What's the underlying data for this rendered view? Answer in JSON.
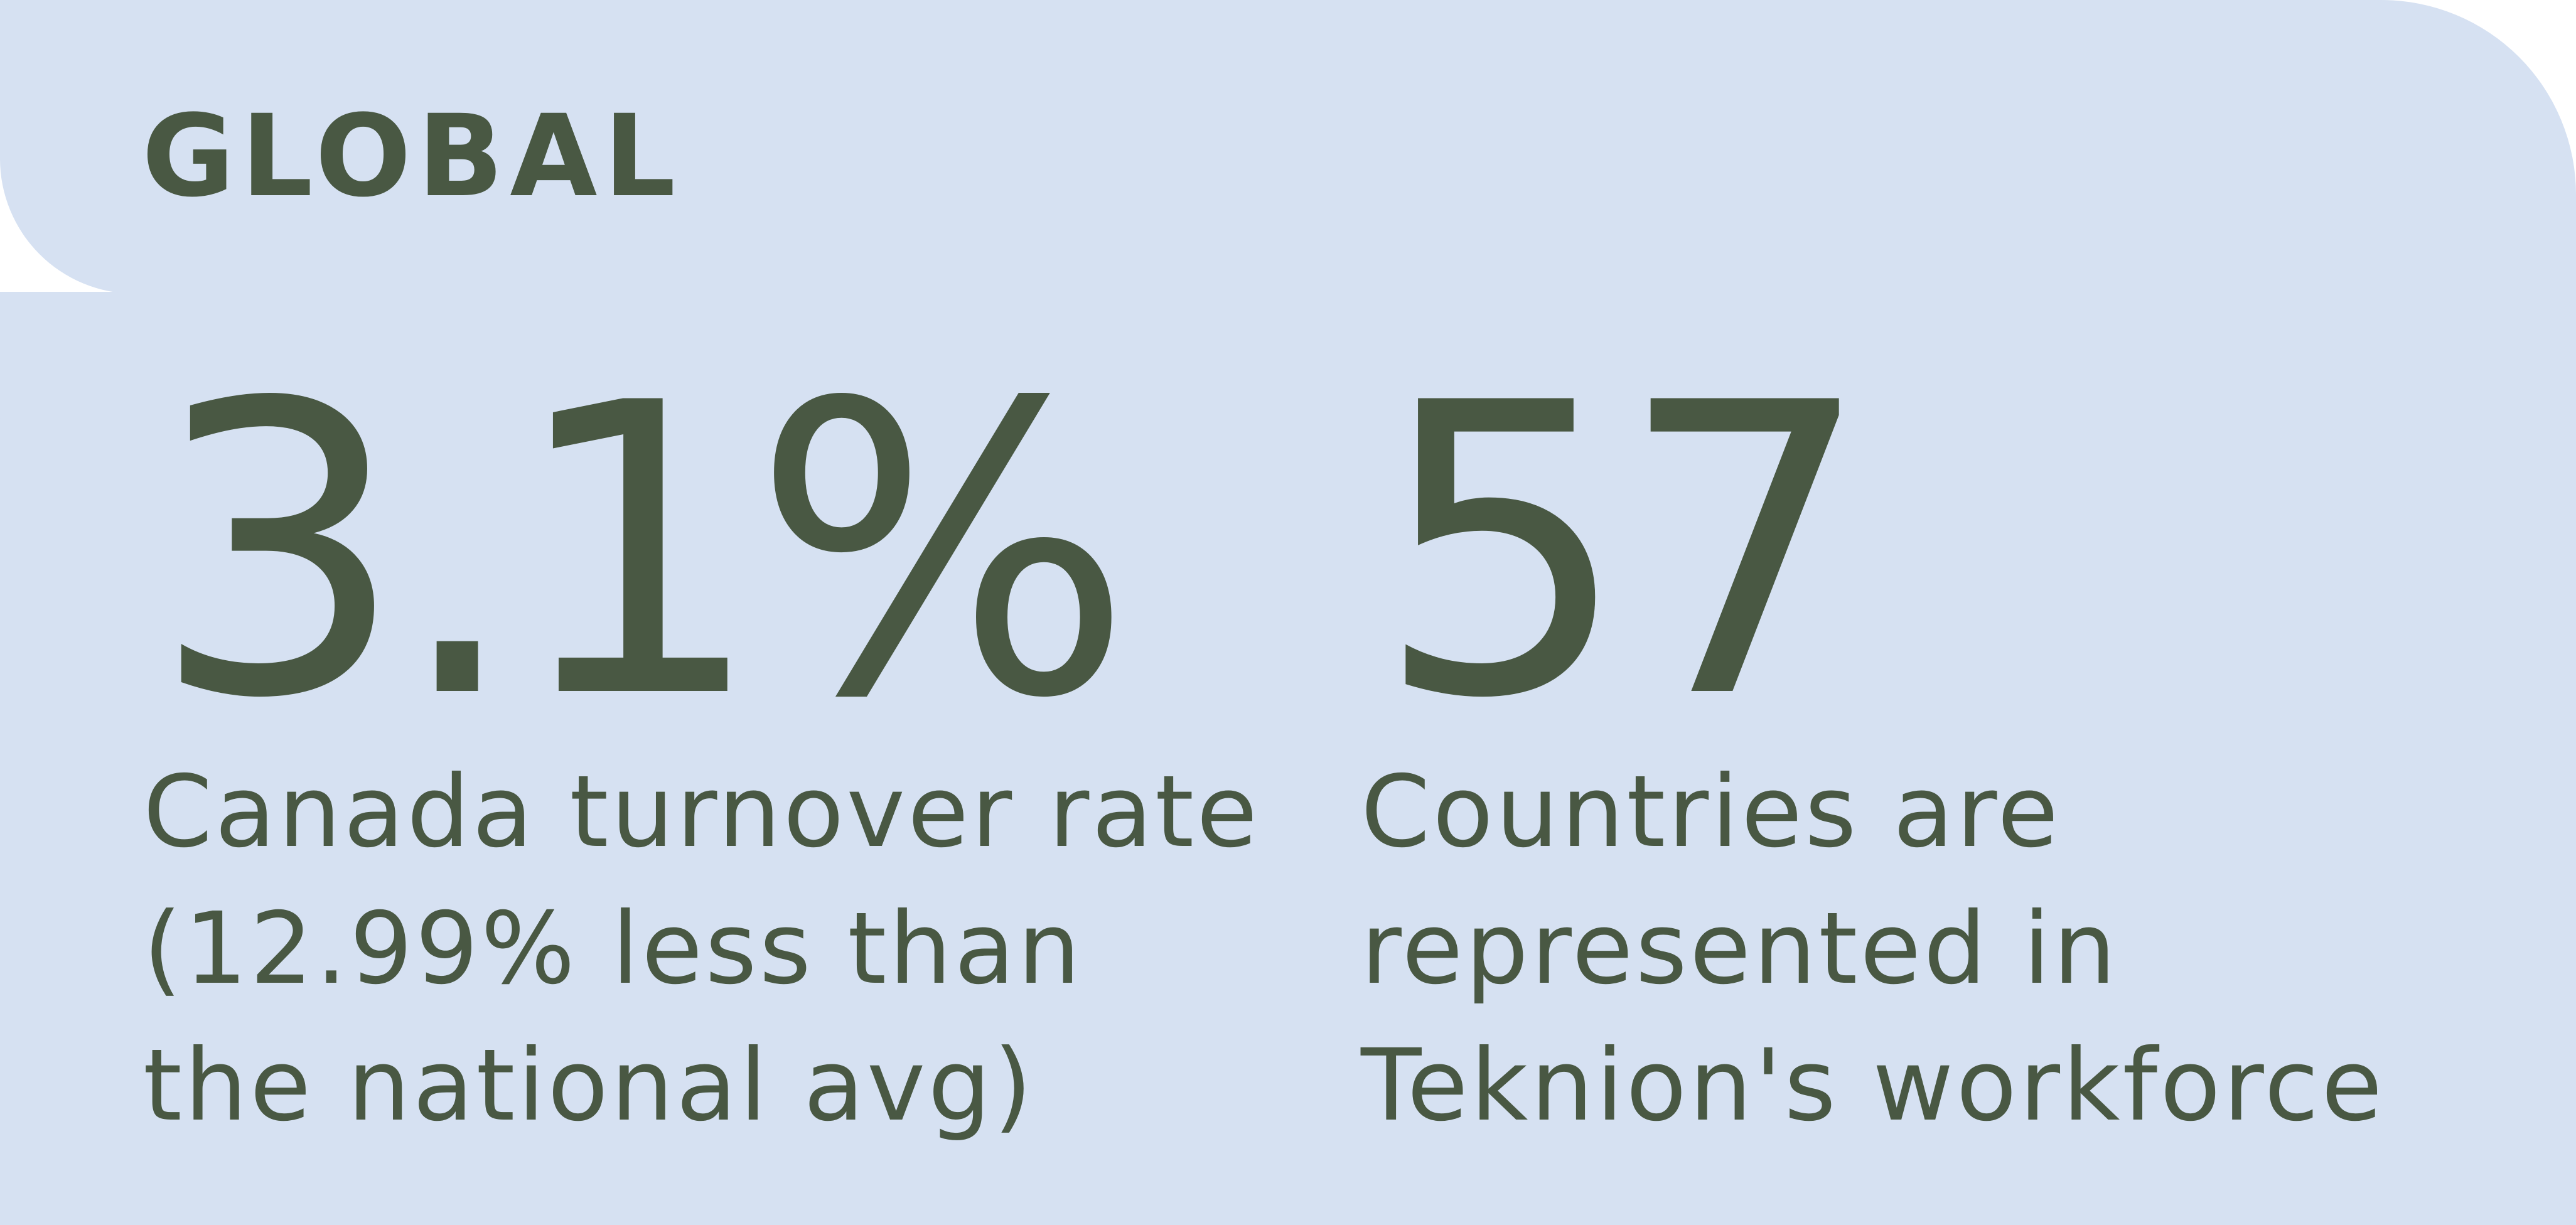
{
  "colors": {
    "card_background": "#d6e1f2",
    "text": "#495843"
  },
  "heading": "GLOBAL",
  "stats": [
    {
      "value": "3.1%",
      "caption": "Canada turnover rate (12.99% less than the national avg)"
    },
    {
      "value": "57",
      "caption": "Countries are represented in Teknion's workforce"
    }
  ]
}
